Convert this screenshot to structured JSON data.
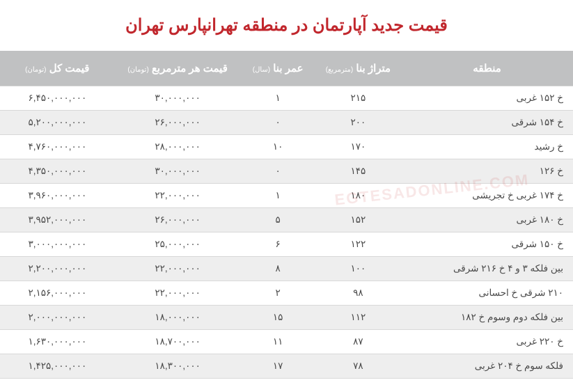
{
  "title": "قیمت جدید آپارتمان در منطقه تهرانپارس تهران",
  "title_color": "#c1272d",
  "header_bg": "#c0c1c2",
  "header_fg": "#ffffff",
  "row_odd_bg": "#ffffff",
  "row_even_bg": "#eeeeee",
  "border_color": "#d8d8d8",
  "text_color": "#4a4a4a",
  "watermark": "EGTESADONLINE.COM",
  "columns": [
    {
      "label": "منطقه",
      "sub": "",
      "width": "30%"
    },
    {
      "label": "متراژ بنا",
      "sub": "(مترمربع)",
      "width": "15%"
    },
    {
      "label": "عمر بنا",
      "sub": "(سال)",
      "width": "13%"
    },
    {
      "label": "قیمت هر مترمربع",
      "sub": "(تومان)",
      "width": "22%"
    },
    {
      "label": "قیمت کل",
      "sub": "(تومان)",
      "width": "20%"
    }
  ],
  "rows": [
    [
      "خ ۱۵۲ غربی",
      "۲۱۵",
      "۱",
      "۳۰,۰۰۰,۰۰۰",
      "۶,۴۵۰,۰۰۰,۰۰۰"
    ],
    [
      "خ ۱۵۴ شرقی",
      "۲۰۰",
      "۰",
      "۲۶,۰۰۰,۰۰۰",
      "۵,۲۰۰,۰۰۰,۰۰۰"
    ],
    [
      "خ رشید",
      "۱۷۰",
      "۱۰",
      "۲۸,۰۰۰,۰۰۰",
      "۴,۷۶۰,۰۰۰,۰۰۰"
    ],
    [
      "خ ۱۲۶",
      "۱۴۵",
      "۰",
      "۳۰,۰۰۰,۰۰۰",
      "۴,۳۵۰,۰۰۰,۰۰۰"
    ],
    [
      "خ ۱۷۴ غربی خ تجریشی",
      "۱۸۰",
      "۱",
      "۲۲,۰۰۰,۰۰۰",
      "۳,۹۶۰,۰۰۰,۰۰۰"
    ],
    [
      "خ ۱۸۰ غربی",
      "۱۵۲",
      "۵",
      "۲۶,۰۰۰,۰۰۰",
      "۳,۹۵۲,۰۰۰,۰۰۰"
    ],
    [
      "خ ۱۵۰ شرقی",
      "۱۲۲",
      "۶",
      "۲۵,۰۰۰,۰۰۰",
      "۳,۰۰۰,۰۰۰,۰۰۰"
    ],
    [
      "بین فلکه ۳ و ۴ خ ۲۱۶ شرقی",
      "۱۰۰",
      "۸",
      "۲۲,۰۰۰,۰۰۰",
      "۲,۲۰۰,۰۰۰,۰۰۰"
    ],
    [
      "۲۱۰ شرقی خ احسانی",
      "۹۸",
      "۲",
      "۲۲,۰۰۰,۰۰۰",
      "۲,۱۵۶,۰۰۰,۰۰۰"
    ],
    [
      "بین فلکه دوم وسوم خ ۱۸۲",
      "۱۱۲",
      "۱۵",
      "۱۸,۰۰۰,۰۰۰",
      "۲,۰۰۰,۰۰۰,۰۰۰"
    ],
    [
      "خ ۲۲۰ غربی",
      "۸۷",
      "۱۱",
      "۱۸,۷۰۰,۰۰۰",
      "۱,۶۳۰,۰۰۰,۰۰۰"
    ],
    [
      "فلکه سوم خ ۲۰۴ غربی",
      "۷۸",
      "۱۷",
      "۱۸,۳۰۰,۰۰۰",
      "۱,۴۲۵,۰۰۰,۰۰۰"
    ]
  ]
}
